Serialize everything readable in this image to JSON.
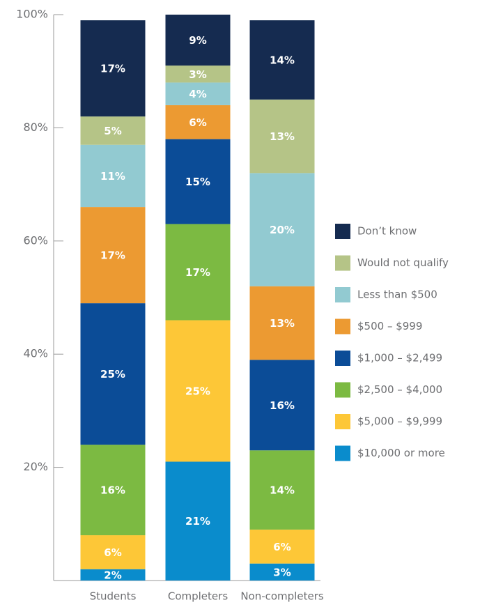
{
  "chart_data": {
    "type": "stacked_bar",
    "categories": [
      "Students",
      "Completers",
      "Non-completers"
    ],
    "series": [
      {
        "name": "$10,000 or more",
        "color": "#0a8ccc",
        "values": [
          2,
          21,
          3
        ],
        "value_labels": [
          "2%",
          "21%",
          "3%"
        ]
      },
      {
        "name": "$5,000 – $9,999",
        "color": "#fdc737",
        "values": [
          6,
          25,
          6
        ],
        "value_labels": [
          "6%",
          "25%",
          "6%"
        ]
      },
      {
        "name": "$2,500 – $4,000",
        "color": "#7cba42",
        "values": [
          16,
          17,
          14
        ],
        "value_labels": [
          "16%",
          "17%",
          "14%"
        ]
      },
      {
        "name": "$1,000 – $2,499",
        "color": "#0b4c97",
        "values": [
          25,
          15,
          16
        ],
        "value_labels": [
          "25%",
          "15%",
          "16%"
        ]
      },
      {
        "name": "$500 – $999",
        "color": "#ec9a32",
        "values": [
          17,
          6,
          13
        ],
        "value_labels": [
          "17%",
          "6%",
          "13%"
        ]
      },
      {
        "name": "Less than $500",
        "color": "#92cad1",
        "values": [
          11,
          4,
          20
        ],
        "value_labels": [
          "11%",
          "4%",
          "20%"
        ]
      },
      {
        "name": "Would not qualify",
        "color": "#b5c487",
        "values": [
          5,
          3,
          13
        ],
        "value_labels": [
          "5%",
          "3%",
          "13%"
        ]
      },
      {
        "name": "Don’t know",
        "color": "#152b50",
        "values": [
          17,
          9,
          14
        ],
        "value_labels": [
          "17%",
          "9%",
          "14%"
        ]
      }
    ],
    "ylim": [
      0,
      100
    ],
    "yticks": [
      {
        "value": 20,
        "label": "20%"
      },
      {
        "value": 40,
        "label": "40%"
      },
      {
        "value": 60,
        "label": "60%"
      },
      {
        "value": 80,
        "label": "80%"
      },
      {
        "value": 100,
        "label": "100%"
      }
    ],
    "legend": "right"
  }
}
